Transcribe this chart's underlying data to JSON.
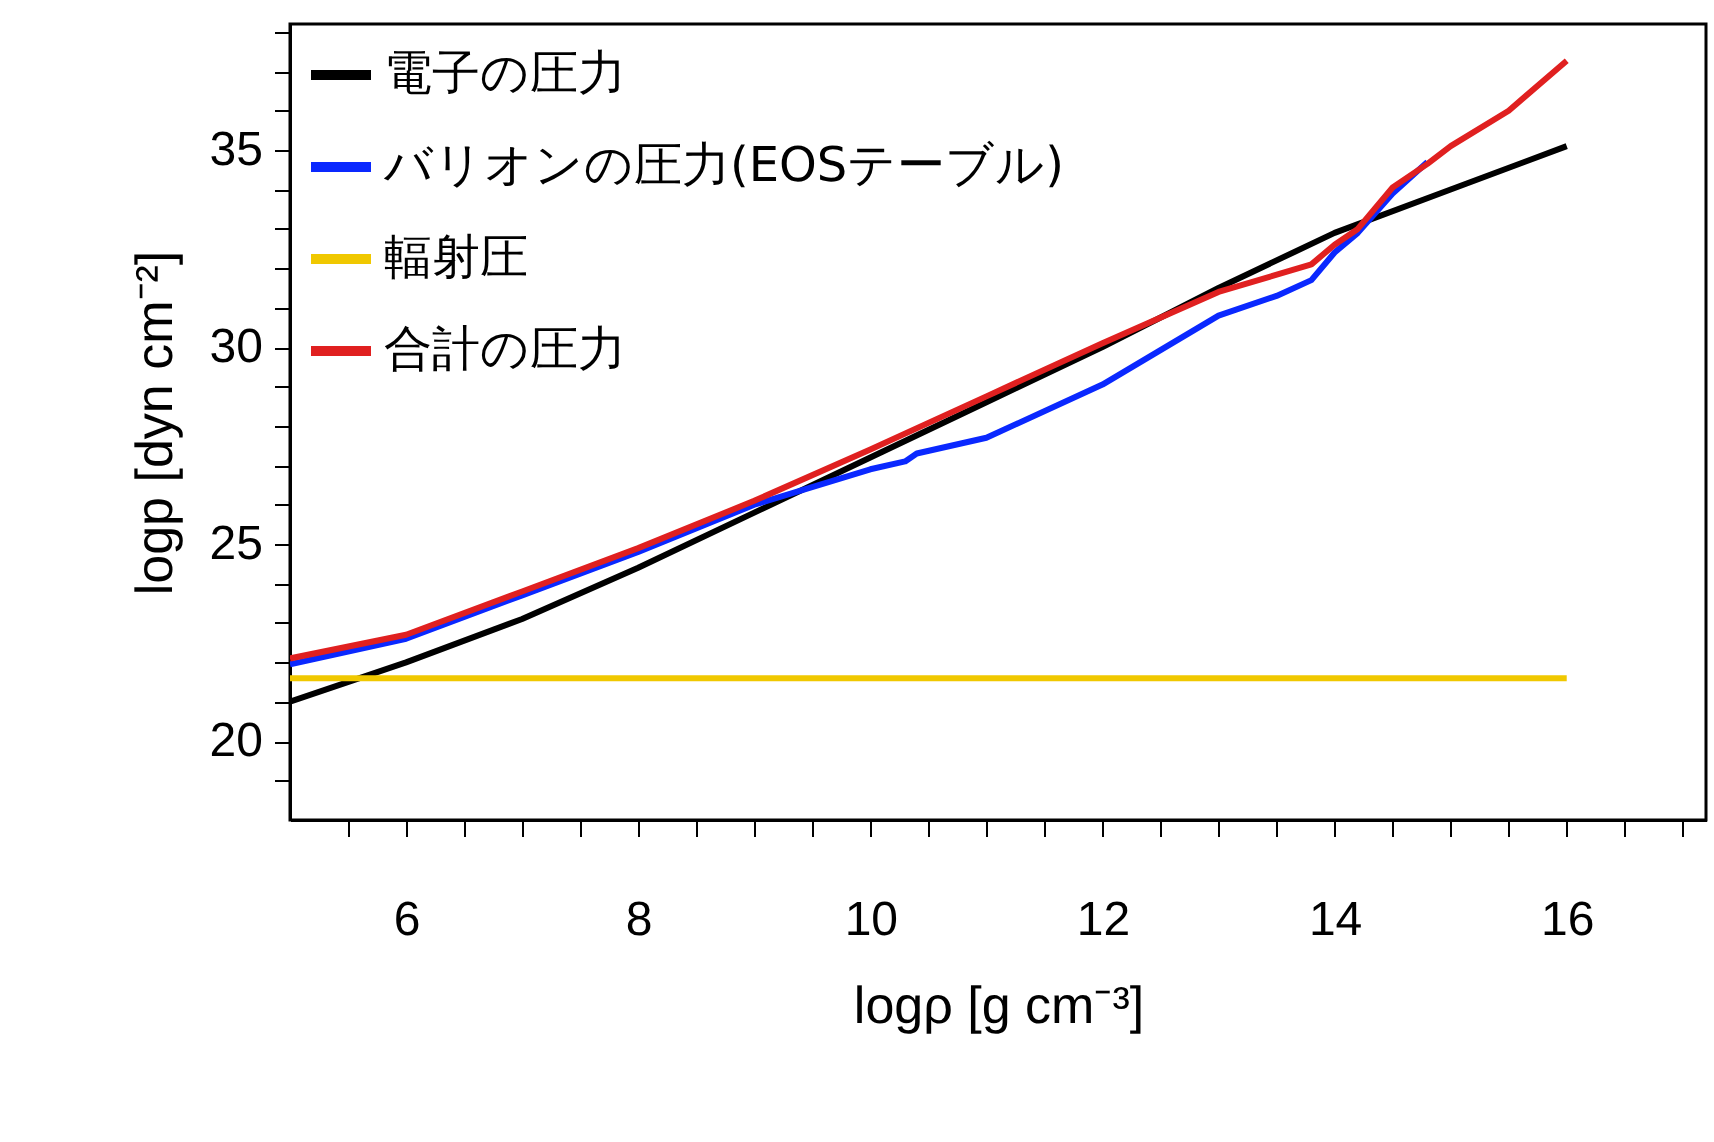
{
  "chart_data": {
    "type": "line",
    "xlabel": "logρ [g cm⁻³]",
    "ylabel": "logp [dyn cm⁻²]",
    "xlim": [
      5,
      17.2
    ],
    "ylim": [
      18,
      38.2
    ],
    "xticks": [
      {
        "value": 5.5,
        "label": null
      },
      6,
      {
        "value": 6.5,
        "label": null
      },
      {
        "value": 7,
        "label": null
      },
      {
        "value": 7.5,
        "label": null
      },
      8,
      {
        "value": 8.5,
        "label": null
      },
      {
        "value": 9,
        "label": null
      },
      {
        "value": 9.5,
        "label": null
      },
      10,
      {
        "value": 10.5,
        "label": null
      },
      {
        "value": 11,
        "label": null
      },
      {
        "value": 11.5,
        "label": null
      },
      12,
      {
        "value": 12.5,
        "label": null
      },
      {
        "value": 13,
        "label": null
      },
      {
        "value": 13.5,
        "label": null
      },
      14,
      {
        "value": 14.5,
        "label": null
      },
      {
        "value": 15,
        "label": null
      },
      {
        "value": 15.5,
        "label": null
      },
      16,
      {
        "value": 16.5,
        "label": null
      },
      {
        "value": 17,
        "label": null
      }
    ],
    "yticks": [
      {
        "value": 19,
        "label": null
      },
      20,
      {
        "value": 21,
        "label": null
      },
      {
        "value": 22,
        "label": null
      },
      {
        "value": 23,
        "label": null
      },
      {
        "value": 24,
        "label": null
      },
      25,
      {
        "value": 26,
        "label": null
      },
      {
        "value": 27,
        "label": null
      },
      {
        "value": 28,
        "label": null
      },
      {
        "value": 29,
        "label": null
      },
      30,
      {
        "value": 31,
        "label": null
      },
      {
        "value": 32,
        "label": null
      },
      {
        "value": 33,
        "label": null
      },
      {
        "value": 34,
        "label": null
      },
      35,
      {
        "value": 36,
        "label": null
      },
      {
        "value": 37,
        "label": null
      },
      {
        "value": 38,
        "label": null
      }
    ],
    "legend": "top left",
    "grid": false,
    "marker": "none",
    "line_style": "solid",
    "series": [
      {
        "name": "電子の圧力",
        "color": "#000000",
        "x": [
          5,
          6,
          7,
          8,
          9,
          10,
          11,
          12,
          13,
          14,
          15,
          16
        ],
        "values": [
          21.0,
          22.0,
          23.1,
          24.4,
          25.8,
          27.2,
          28.6,
          30.0,
          31.5,
          32.9,
          34.0,
          35.1
        ]
      },
      {
        "name": "バリオンの圧力(EOSテーブル)",
        "color": "#0a28ff",
        "x": [
          5,
          6,
          7,
          8,
          9,
          10,
          10.3,
          10.4,
          11,
          12,
          13,
          13.5,
          13.8,
          14,
          14.2,
          14.5,
          14.8
        ],
        "values": [
          21.95,
          22.6,
          23.7,
          24.8,
          26.0,
          26.9,
          27.1,
          27.3,
          27.7,
          29.05,
          30.8,
          31.3,
          31.7,
          32.4,
          32.9,
          33.9,
          34.7
        ]
      },
      {
        "name": "輻射圧",
        "color": "#f0c800",
        "x": [
          5,
          16
        ],
        "values": [
          21.6,
          21.6
        ]
      },
      {
        "name": "合計の圧力",
        "color": "#e02020",
        "x": [
          5,
          6,
          7,
          8,
          9,
          10,
          11,
          12,
          13,
          13.8,
          14,
          14.2,
          14.5,
          14.8,
          15,
          15.5,
          16
        ],
        "values": [
          22.1,
          22.7,
          23.8,
          24.9,
          26.1,
          27.4,
          28.75,
          30.1,
          31.4,
          32.1,
          32.6,
          33.0,
          34.05,
          34.65,
          35.1,
          36.0,
          37.27
        ]
      }
    ]
  }
}
